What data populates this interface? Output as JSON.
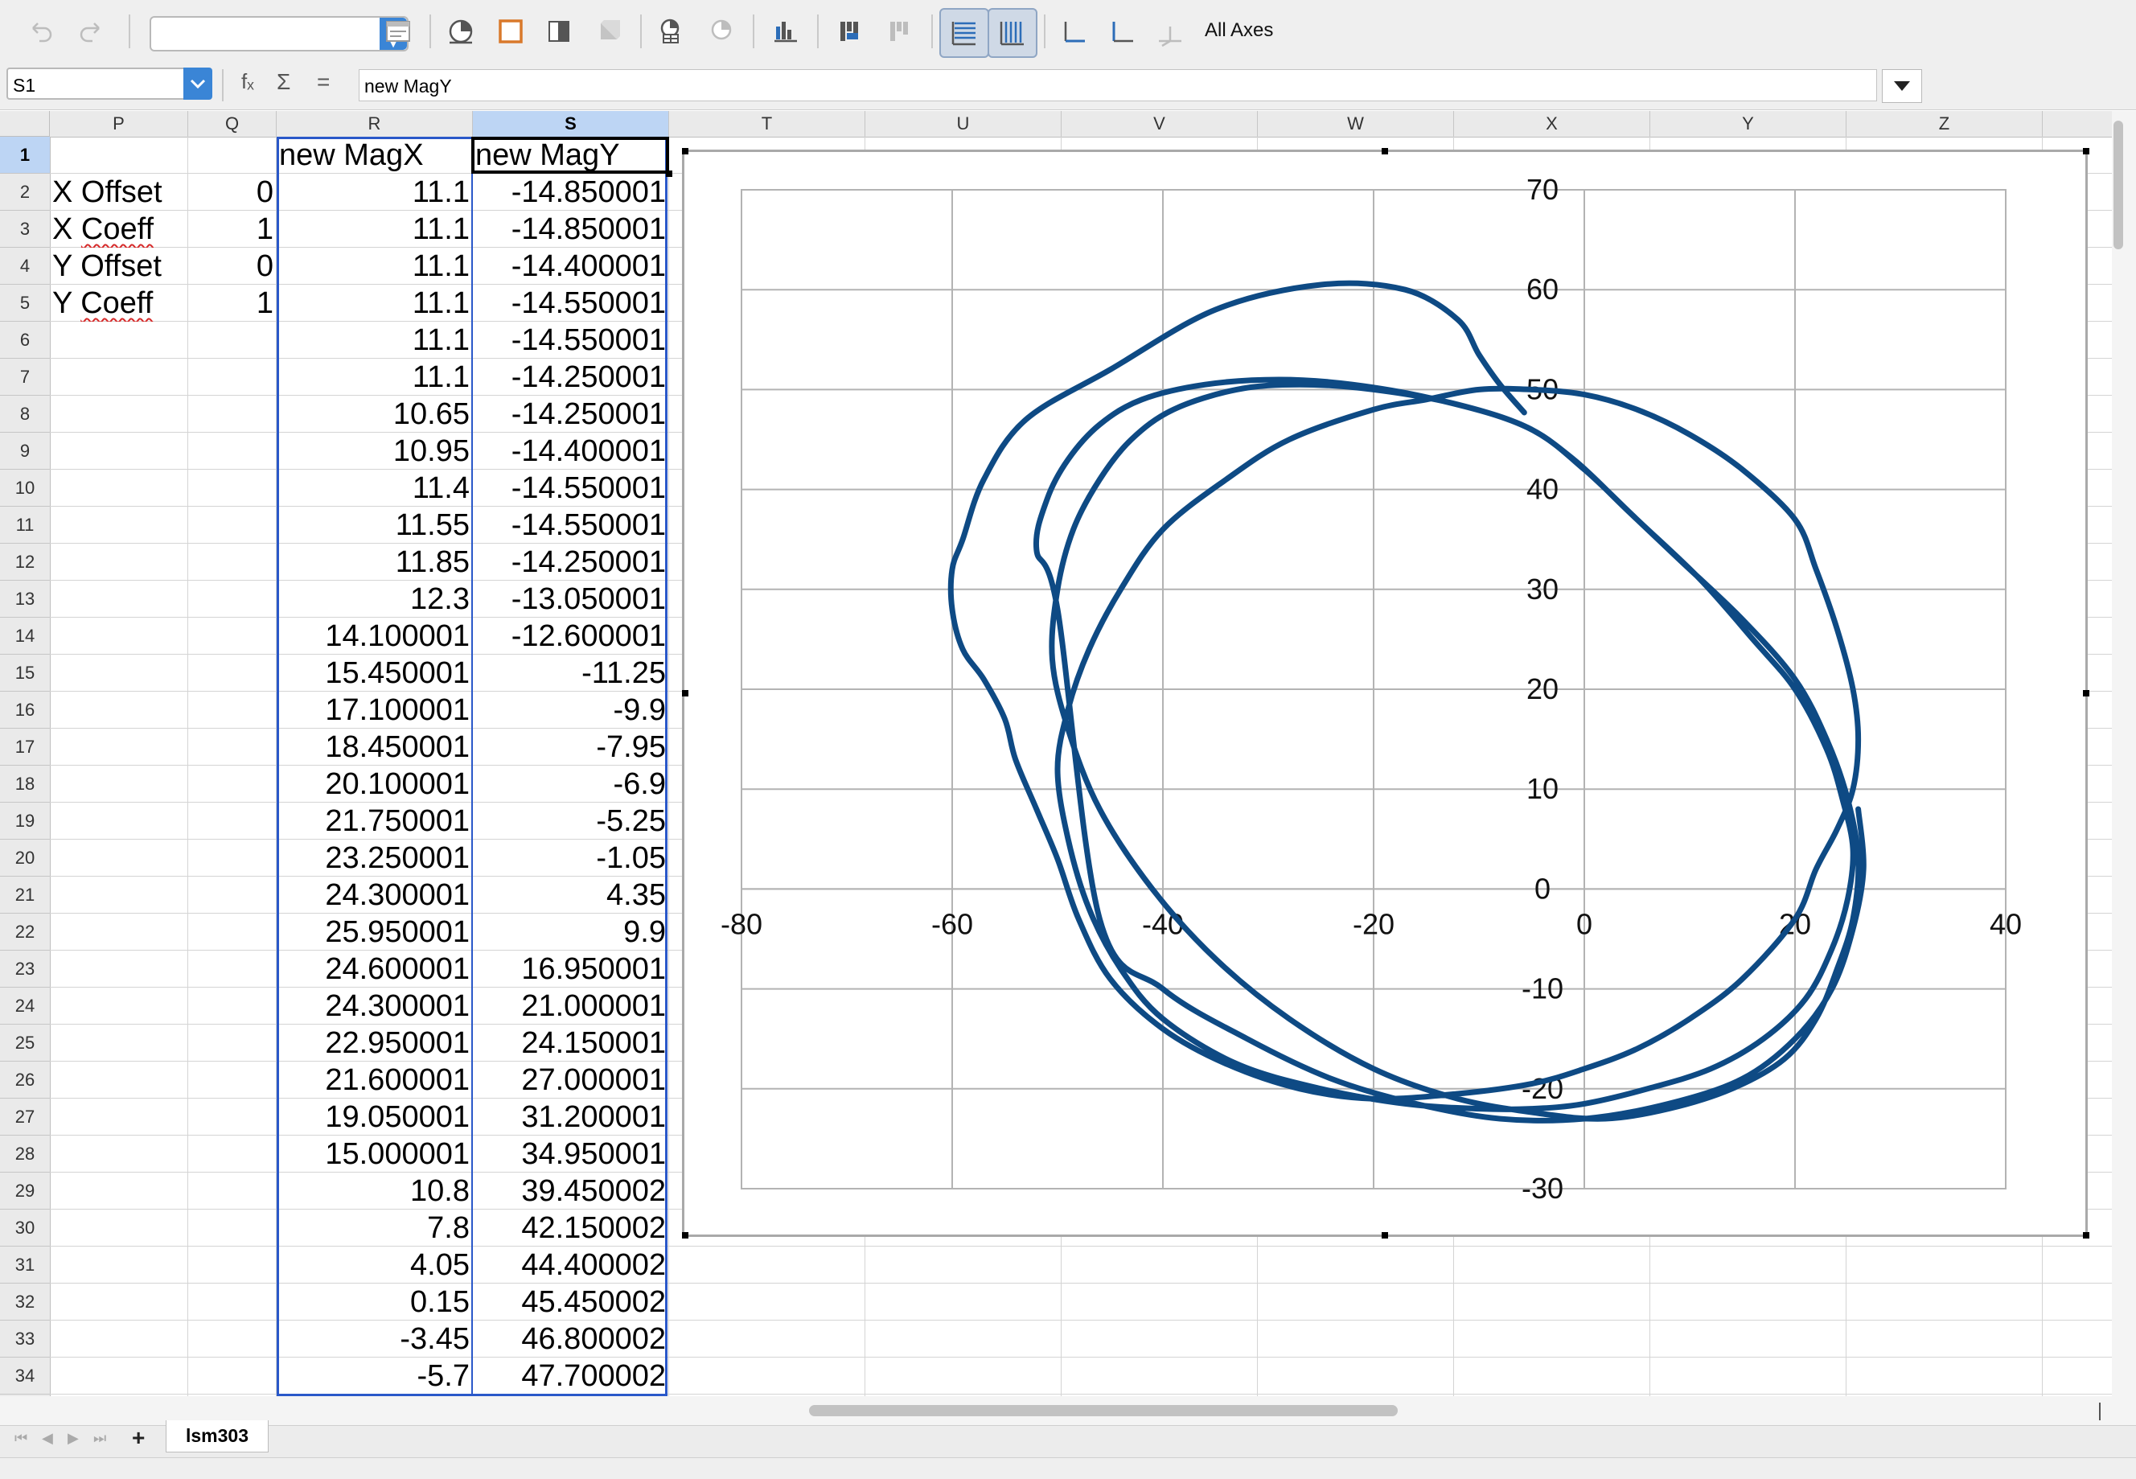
{
  "toolbar": {
    "chart_type_value": "",
    "all_axes_label": "All Axes",
    "icons": [
      "undo-icon",
      "redo-icon",
      "chart-type-icon",
      "chart-area-icon",
      "chart-wall-icon",
      "chart-floor-icon",
      "3d-view-icon",
      "data-table-icon",
      "data-series-icon",
      "legend-icon",
      "title-icon",
      "horizontal-grid-icon",
      "vertical-grid-icon",
      "x-axis-icon",
      "y-axis-icon",
      "z-axis-icon"
    ]
  },
  "formula_bar": {
    "name_box": "S1",
    "formula": "new MagY",
    "fx_symbol": "fₓ",
    "sum_symbol": "Σ",
    "equals_symbol": "="
  },
  "columns": [
    {
      "label": "P",
      "selected": false
    },
    {
      "label": "Q",
      "selected": false
    },
    {
      "label": "R",
      "selected": false
    },
    {
      "label": "S",
      "selected": true
    },
    {
      "label": "T",
      "selected": false
    },
    {
      "label": "U",
      "selected": false
    },
    {
      "label": "V",
      "selected": false
    },
    {
      "label": "W",
      "selected": false
    },
    {
      "label": "X",
      "selected": false
    },
    {
      "label": "Y",
      "selected": false
    },
    {
      "label": "Z",
      "selected": false
    }
  ],
  "rows": [
    "1",
    "2",
    "3",
    "4",
    "5",
    "6",
    "7",
    "8",
    "9",
    "10",
    "11",
    "12",
    "13",
    "14",
    "15",
    "16",
    "17",
    "18",
    "19",
    "20",
    "21",
    "22",
    "23",
    "24",
    "25",
    "26",
    "27",
    "28",
    "29",
    "30",
    "31",
    "32",
    "33",
    "34"
  ],
  "params": [
    {
      "label": "X Offset",
      "value": "0"
    },
    {
      "label": "X Coeff",
      "value": "1"
    },
    {
      "label": "Y Offset",
      "value": "0"
    },
    {
      "label": "Y Coeff",
      "value": "1"
    }
  ],
  "headers": {
    "mag_x": "new MagX",
    "mag_y": "new MagY"
  },
  "mag_x": [
    "11.1",
    "11.1",
    "11.1",
    "11.1",
    "11.1",
    "11.1",
    "10.65",
    "10.95",
    "11.4",
    "11.55",
    "11.85",
    "12.3",
    "14.100001",
    "15.450001",
    "17.100001",
    "18.450001",
    "20.100001",
    "21.750001",
    "23.250001",
    "24.300001",
    "25.950001",
    "24.600001",
    "24.300001",
    "22.950001",
    "21.600001",
    "19.050001",
    "15.000001",
    "10.8",
    "7.8",
    "4.05",
    "0.15",
    "-3.45",
    "-5.7"
  ],
  "mag_y": [
    "-14.850001",
    "-14.850001",
    "-14.400001",
    "-14.550001",
    "-14.550001",
    "-14.250001",
    "-14.250001",
    "-14.400001",
    "-14.550001",
    "-14.550001",
    "-14.250001",
    "-13.050001",
    "-12.600001",
    "-11.25",
    "-9.9",
    "-7.95",
    "-6.9",
    "-5.25",
    "-1.05",
    "4.35",
    "9.9",
    "16.950001",
    "21.000001",
    "24.150001",
    "27.000001",
    "31.200001",
    "34.950001",
    "39.450002",
    "42.150002",
    "44.400002",
    "45.450002",
    "46.800002",
    "47.700002"
  ],
  "sheet_tab": "lsm303",
  "chart_data": {
    "type": "scatter",
    "title": "",
    "xlabel": "",
    "ylabel": "",
    "xlim": [
      -80,
      40
    ],
    "ylim": [
      -30,
      70
    ],
    "x_ticks": [
      "-80",
      "-60",
      "-40",
      "-20",
      "0",
      "20",
      "40"
    ],
    "y_ticks": [
      "-30",
      "-20",
      "-10",
      "0",
      "10",
      "20",
      "30",
      "40",
      "50",
      "60",
      "70"
    ],
    "grid": true,
    "legend": "none",
    "line_color": "#0e4a84",
    "series": [
      {
        "x": [
          -5.7,
          -8,
          -10,
          -12,
          -17,
          -25,
          -35,
          -45,
          -53,
          -57,
          -59,
          -60,
          -60,
          -59,
          -57,
          -55,
          -54,
          -52,
          -50,
          -48,
          -45,
          -40,
          -34,
          -27,
          -20,
          -12,
          -5,
          0,
          5,
          10,
          15,
          20,
          22,
          24,
          25.5,
          26,
          25.5,
          24,
          22,
          20,
          15,
          10,
          5,
          0,
          -5,
          -10,
          -15,
          -20,
          -28,
          -34,
          -40,
          -44,
          -47,
          -49,
          -50,
          -49,
          -47,
          -44,
          -40,
          -33,
          -25,
          -17,
          -10,
          -5,
          0,
          6,
          12,
          17,
          21,
          23.5,
          25,
          25.5,
          24.5,
          23,
          20,
          16,
          11,
          5,
          0,
          -5,
          -12,
          -20,
          -27,
          -33,
          -39,
          -43,
          -46,
          -48.5,
          -50,
          -50.5,
          -49,
          -46,
          -41,
          -35,
          -28,
          -20,
          -12,
          -4,
          2,
          8,
          14,
          19,
          22,
          24,
          25.5,
          26,
          25,
          23,
          20,
          15,
          9,
          4,
          -1,
          -6,
          -14,
          -22,
          -29,
          -36,
          -42,
          -46,
          -49,
          -51,
          -52,
          -50,
          -46,
          -40,
          -32,
          -24,
          -16,
          -8,
          0,
          8,
          15,
          20,
          23.5,
          25.5,
          26.5,
          26
        ],
        "y": [
          47.7,
          50.5,
          53.5,
          57,
          60,
          60.5,
          58,
          52,
          47,
          41,
          35,
          32,
          28,
          24,
          21,
          17,
          13,
          8,
          3,
          -3,
          -9,
          -14,
          -17.5,
          -20,
          -21,
          -20.5,
          -19.5,
          -18,
          -16,
          -13,
          -9,
          -3,
          2,
          6,
          10,
          15,
          20,
          26,
          32,
          37,
          42,
          45.5,
          48,
          49.5,
          50,
          50,
          49,
          48,
          45,
          41,
          36,
          30,
          24,
          18,
          12,
          5,
          -2,
          -8,
          -13,
          -17.5,
          -20,
          -21.5,
          -22,
          -22,
          -21.5,
          -20,
          -18,
          -15,
          -11,
          -6,
          -1,
          4,
          9,
          14,
          20,
          25,
          31,
          37,
          42,
          46,
          48.5,
          50,
          50.5,
          50,
          48,
          45,
          41,
          36,
          30,
          23,
          16,
          8,
          0,
          -7,
          -13,
          -18,
          -21,
          -22.5,
          -23,
          -22,
          -20,
          -17,
          -13,
          -8,
          -3,
          3,
          9,
          15,
          21,
          27,
          33,
          38,
          43,
          46.5,
          49,
          50.5,
          51,
          50.5,
          49,
          46.5,
          43,
          39,
          34,
          28,
          -3,
          -10,
          -15,
          -19,
          -21.5,
          -23,
          -23,
          -21.5,
          -19,
          -15,
          -10,
          -4,
          2,
          8
        ]
      }
    ]
  }
}
